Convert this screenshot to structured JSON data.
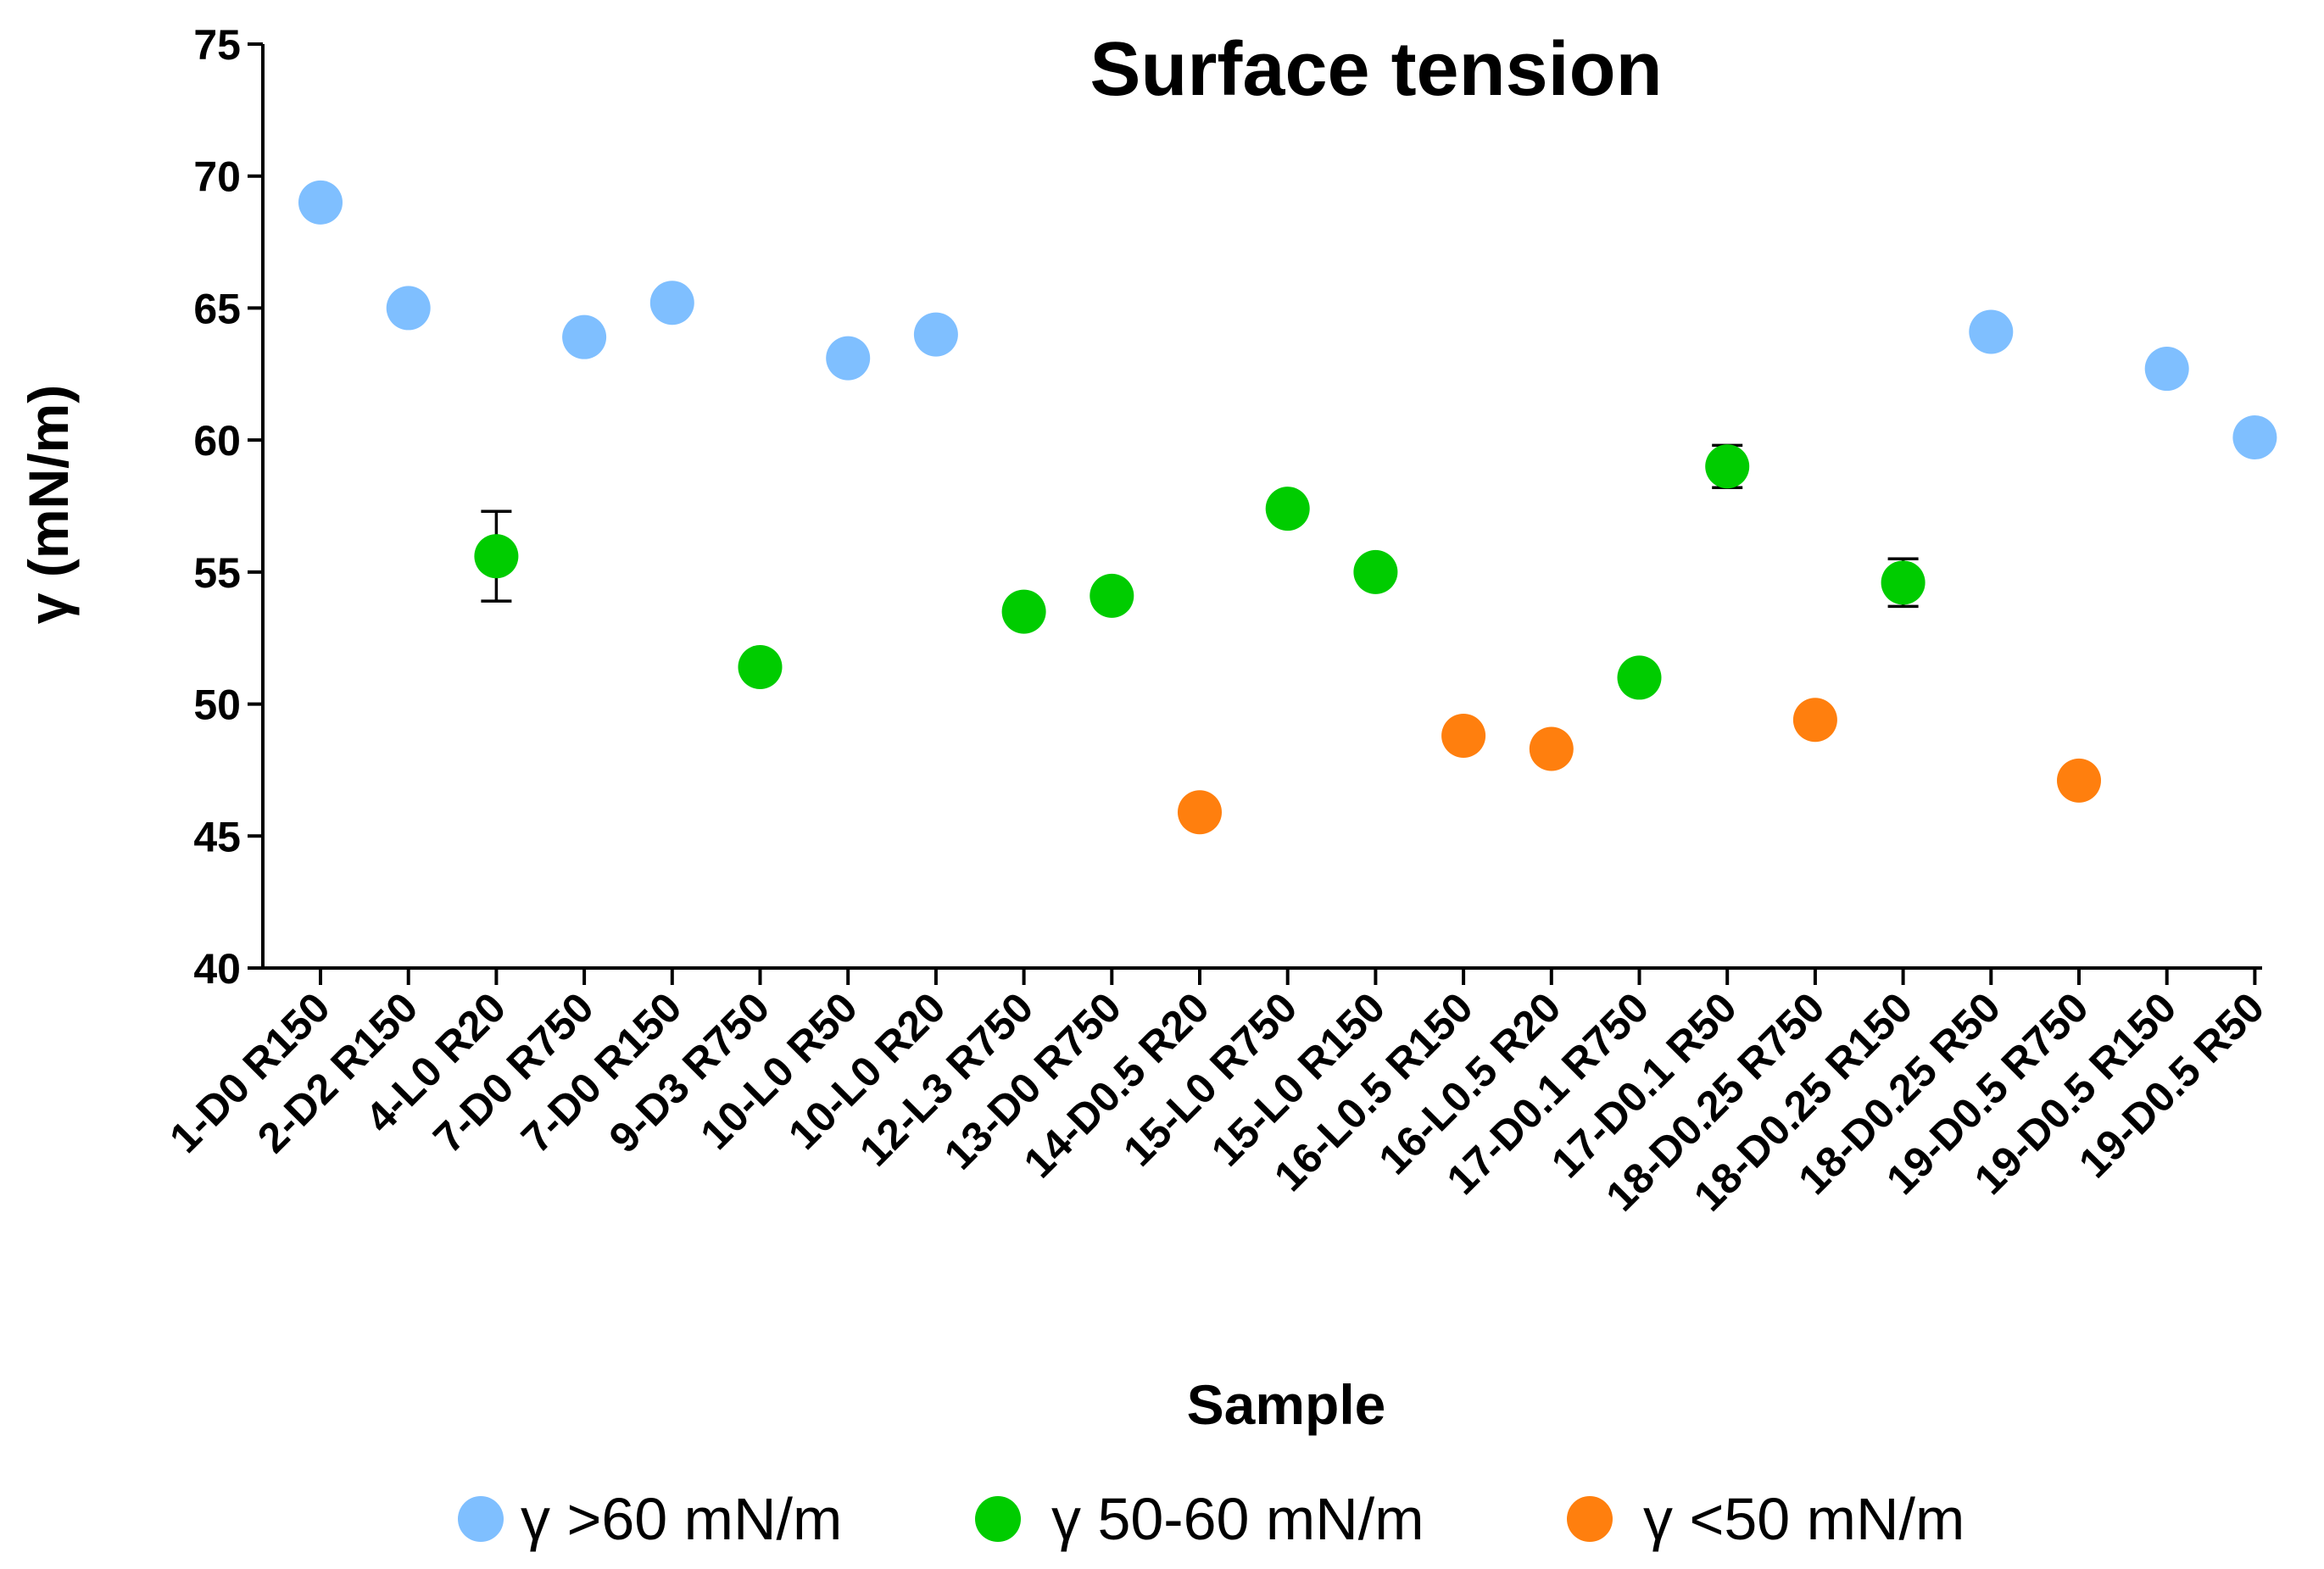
{
  "chart_data": {
    "type": "scatter",
    "title": "Surface tension",
    "xlabel": "Sample",
    "ylabel": "γ (mN/m)",
    "ylim": [
      40,
      75
    ],
    "yticks": [
      40,
      45,
      50,
      55,
      60,
      65,
      70,
      75
    ],
    "grid": false,
    "legend_position": "bottom",
    "colors": {
      "high": "#7fbfff",
      "mid": "#00cc00",
      "low": "#ff7f0e"
    },
    "legend": [
      {
        "key": "high",
        "label": "γ >60 mN/m"
      },
      {
        "key": "mid",
        "label": "γ 50-60 mN/m"
      },
      {
        "key": "low",
        "label": "γ <50 mN/m"
      }
    ],
    "categories": [
      "1-D0 R150",
      "2-D2 R150",
      "4-L0 R20",
      "7-D0 R750",
      "7-D0 R150",
      "9-D3 R750",
      "10-L0 R50",
      "10-L0 R20",
      "12-L3 R750",
      "13-D0 R750",
      "14-D0.5 R20",
      "15-L0 R750",
      "15-L0 R150",
      "16-L0.5 R150",
      "16-L0.5 R20",
      "17-D0.1 R750",
      "17-D0.1 R50",
      "18-D0.25 R750",
      "18-D0.25 R150",
      "18-D0.25 R50",
      "19-D0.5 R750",
      "19-D0.5 R150",
      "19-D0.5 R50"
    ],
    "values": [
      69.0,
      65.0,
      55.6,
      63.9,
      65.2,
      51.4,
      63.1,
      64.0,
      53.5,
      54.1,
      45.9,
      57.4,
      55.0,
      48.8,
      48.3,
      51.0,
      59.0,
      49.4,
      54.6,
      64.1,
      47.1,
      62.7,
      60.1
    ],
    "groups": [
      "high",
      "high",
      "mid",
      "high",
      "high",
      "mid",
      "high",
      "high",
      "mid",
      "mid",
      "low",
      "mid",
      "mid",
      "low",
      "low",
      "mid",
      "mid",
      "low",
      "mid",
      "high",
      "low",
      "high",
      "high"
    ],
    "errors": [
      0,
      0,
      1.7,
      0,
      0,
      0,
      0,
      0,
      0,
      0,
      0,
      0,
      0,
      0,
      0,
      0,
      0.8,
      0,
      0.9,
      0,
      0,
      0,
      0
    ]
  }
}
